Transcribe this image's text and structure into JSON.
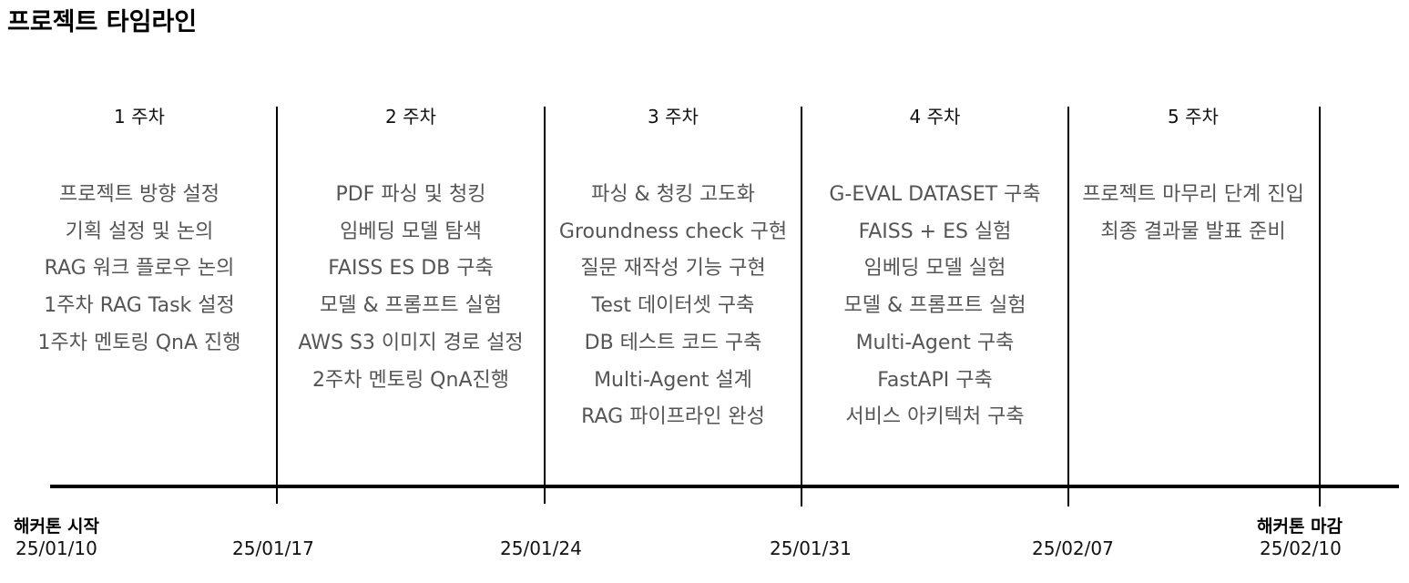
{
  "title": "프로젝트 타임라인",
  "weeks": [
    {
      "label": "1 주차",
      "tasks": [
        "프로젝트 방향 설정",
        "기획 설정 및 논의",
        "RAG 워크 플로우 논의",
        "1주차 RAG Task 설정",
        "1주차 멘토링 QnA 진행"
      ]
    },
    {
      "label": "2 주차",
      "tasks": [
        "PDF 파싱 및 청킹",
        "임베딩 모델 탐색",
        "FAISS ES DB 구축",
        "모델 & 프롬프트 실험",
        "AWS S3 이미지 경로 설정",
        "2주차 멘토링 QnA진행"
      ]
    },
    {
      "label": "3 주차",
      "tasks": [
        "파싱 & 청킹 고도화",
        "Groundness check 구현",
        "질문 재작성 기능 구현",
        "Test 데이터셋 구축",
        "DB 테스트 코드 구축",
        "Multi-Agent 설계",
        "RAG 파이프라인 완성"
      ]
    },
    {
      "label": "4 주차",
      "tasks": [
        "G-EVAL DATASET 구축",
        "FAISS + ES 실험",
        "임베딩 모델 실험",
        "모델 & 프롬프트 실험",
        "Multi-Agent  구축",
        "FastAPI 구축",
        "서비스 아키텍처 구축"
      ]
    },
    {
      "label": "5 주차",
      "tasks": [
        "프로젝트 마무리 단계 진입",
        "최종 결과물 발표 준비"
      ]
    }
  ],
  "milestones": {
    "start": "해커톤 시작",
    "end": "해커톤 마감"
  },
  "dates": [
    "25/01/10",
    "25/01/17",
    "25/01/24",
    "25/01/31",
    "25/02/07",
    "25/02/10"
  ]
}
